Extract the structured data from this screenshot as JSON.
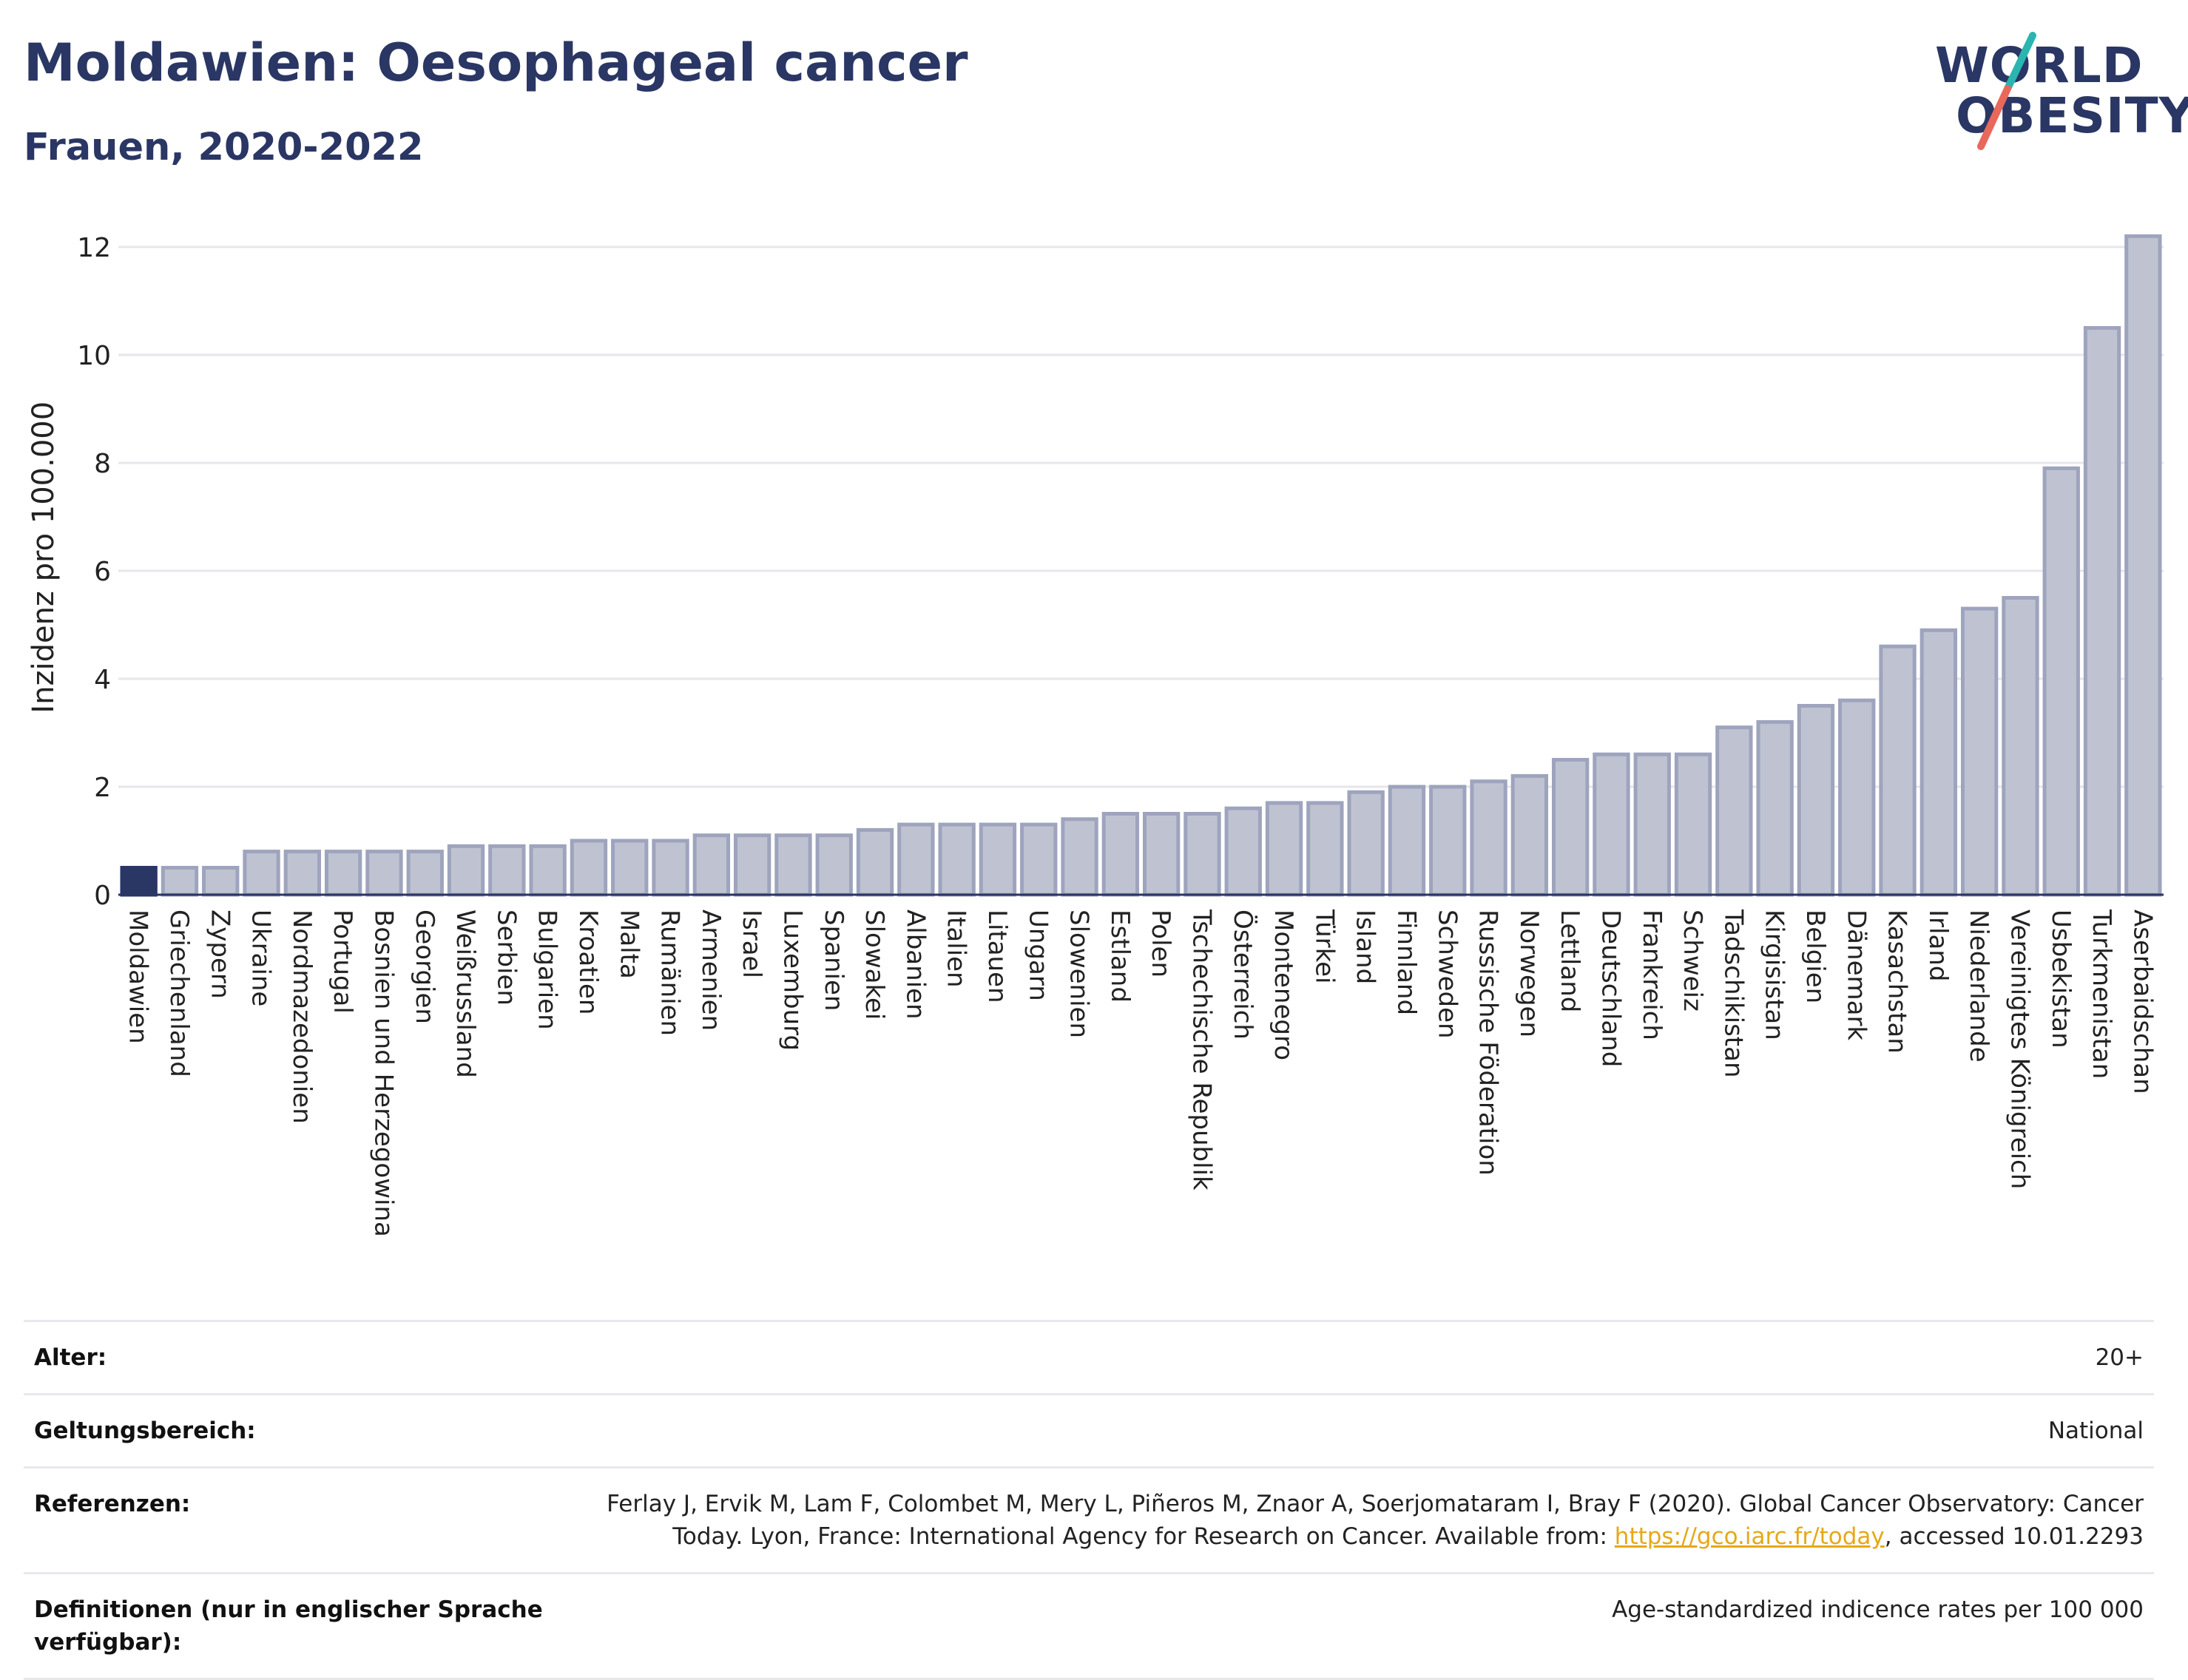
{
  "header": {
    "title": "Moldawien: Oesophageal cancer",
    "subtitle": "Frauen, 2020-2022"
  },
  "logo": {
    "line1": "WORLD",
    "line2": "OBESITY",
    "colors": {
      "text": "#2a3664",
      "slash_top": "#2bb5b0",
      "slash_bottom": "#e8685c"
    }
  },
  "chart_data": {
    "type": "bar",
    "title": "Moldawien: Oesophageal cancer",
    "subtitle": "Frauen, 2020-2022",
    "xlabel": "",
    "ylabel": "Inzidenz pro 100.000",
    "ylim": [
      0,
      12.5
    ],
    "yticks": [
      0,
      2,
      4,
      6,
      8,
      10,
      12
    ],
    "grid": true,
    "highlight": "Moldawien",
    "colors": {
      "highlight": "#2a3664",
      "bar": "#bfc3d1",
      "bar_edge": "#9ea4bd",
      "grid": "#e6e6ec"
    },
    "categories": [
      "Moldawien",
      "Griechenland",
      "Zypern",
      "Ukraine",
      "Nordmazedonien",
      "Portugal",
      "Bosnien und Herzegowina",
      "Georgien",
      "Weißrussland",
      "Serbien",
      "Bulgarien",
      "Kroatien",
      "Malta",
      "Rumänien",
      "Armenien",
      "Israel",
      "Luxemburg",
      "Spanien",
      "Slowakei",
      "Albanien",
      "Italien",
      "Litauen",
      "Ungarn",
      "Slowenien",
      "Estland",
      "Polen",
      "Tschechische Republik",
      "Österreich",
      "Montenegro",
      "Türkei",
      "Island",
      "Finnland",
      "Schweden",
      "Russische Föderation",
      "Norwegen",
      "Lettland",
      "Deutschland",
      "Frankreich",
      "Schweiz",
      "Tadschikistan",
      "Kirgisistan",
      "Belgien",
      "Dänemark",
      "Kasachstan",
      "Irland",
      "Niederlande",
      "Vereinigtes Königreich",
      "Usbekistan",
      "Turkmenistan",
      "Aserbaidschan"
    ],
    "values": [
      0.5,
      0.5,
      0.5,
      0.8,
      0.8,
      0.8,
      0.8,
      0.8,
      0.9,
      0.9,
      0.9,
      1.0,
      1.0,
      1.0,
      1.1,
      1.1,
      1.1,
      1.1,
      1.2,
      1.3,
      1.3,
      1.3,
      1.3,
      1.4,
      1.5,
      1.5,
      1.5,
      1.6,
      1.7,
      1.7,
      1.9,
      2.0,
      2.0,
      2.1,
      2.2,
      2.5,
      2.6,
      2.6,
      2.6,
      3.1,
      3.2,
      3.5,
      3.6,
      4.6,
      4.9,
      5.3,
      5.5,
      7.9,
      10.5,
      12.2
    ]
  },
  "meta": {
    "rows": [
      {
        "key": "Alter:",
        "value": "20+"
      },
      {
        "key": "Geltungsbereich:",
        "value": "National"
      },
      {
        "key": "Referenzen:",
        "value_line1": "Ferlay J, Ervik M, Lam F, Colombet M, Mery L, Piñeros M, Znaor A, Soerjomataram I, Bray F (2020). Global Cancer Observatory: Cancer",
        "value_line2_pre": "Today. Lyon, France: International Agency for Research on Cancer. Available from: ",
        "link": "https://gco.iarc.fr/today",
        "value_line2_post": ", accessed 10.01.2293"
      },
      {
        "key": "Definitionen (nur in englischer Sprache verfügbar):",
        "value": "Age-standardized indicence rates per 100 000"
      }
    ]
  }
}
